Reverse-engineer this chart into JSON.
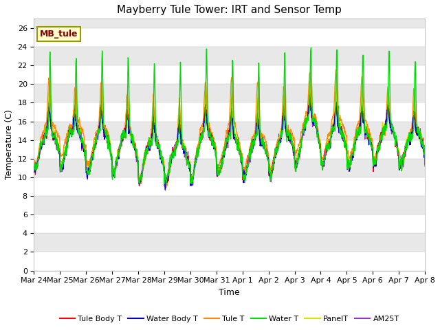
{
  "title": "Mayberry Tule Tower: IRT and Sensor Temp",
  "xlabel": "Time",
  "ylabel": "Temperature (C)",
  "ylim": [
    0,
    27
  ],
  "yticks": [
    0,
    2,
    4,
    6,
    8,
    10,
    12,
    14,
    16,
    18,
    20,
    22,
    24,
    26
  ],
  "xtick_labels": [
    "Mar 24",
    "Mar 25",
    "Mar 26",
    "Mar 27",
    "Mar 28",
    "Mar 29",
    "Mar 30",
    "Mar 31",
    "Apr 1",
    "Apr 2",
    "Apr 3",
    "Apr 4",
    "Apr 5",
    "Apr 6",
    "Apr 7",
    "Apr 8"
  ],
  "n_days": 15,
  "annotation_text": "MB_tule",
  "annotation_bg": "#ffffcc",
  "annotation_border": "#999900",
  "annotation_text_color": "#800000",
  "line_colors": {
    "Tule Body T": "#ff0000",
    "Water Body T": "#0000cc",
    "Tule T": "#ff8800",
    "Water T": "#00dd00",
    "PanelT": "#dddd00",
    "AM25T": "#9933cc"
  },
  "bg_color": "#e8e8e8",
  "bg_stripe_color": "#d8d8d8",
  "grid_color": "#ffffff",
  "title_fontsize": 11,
  "axis_fontsize": 9,
  "tick_fontsize": 8,
  "legend_fontsize": 8
}
